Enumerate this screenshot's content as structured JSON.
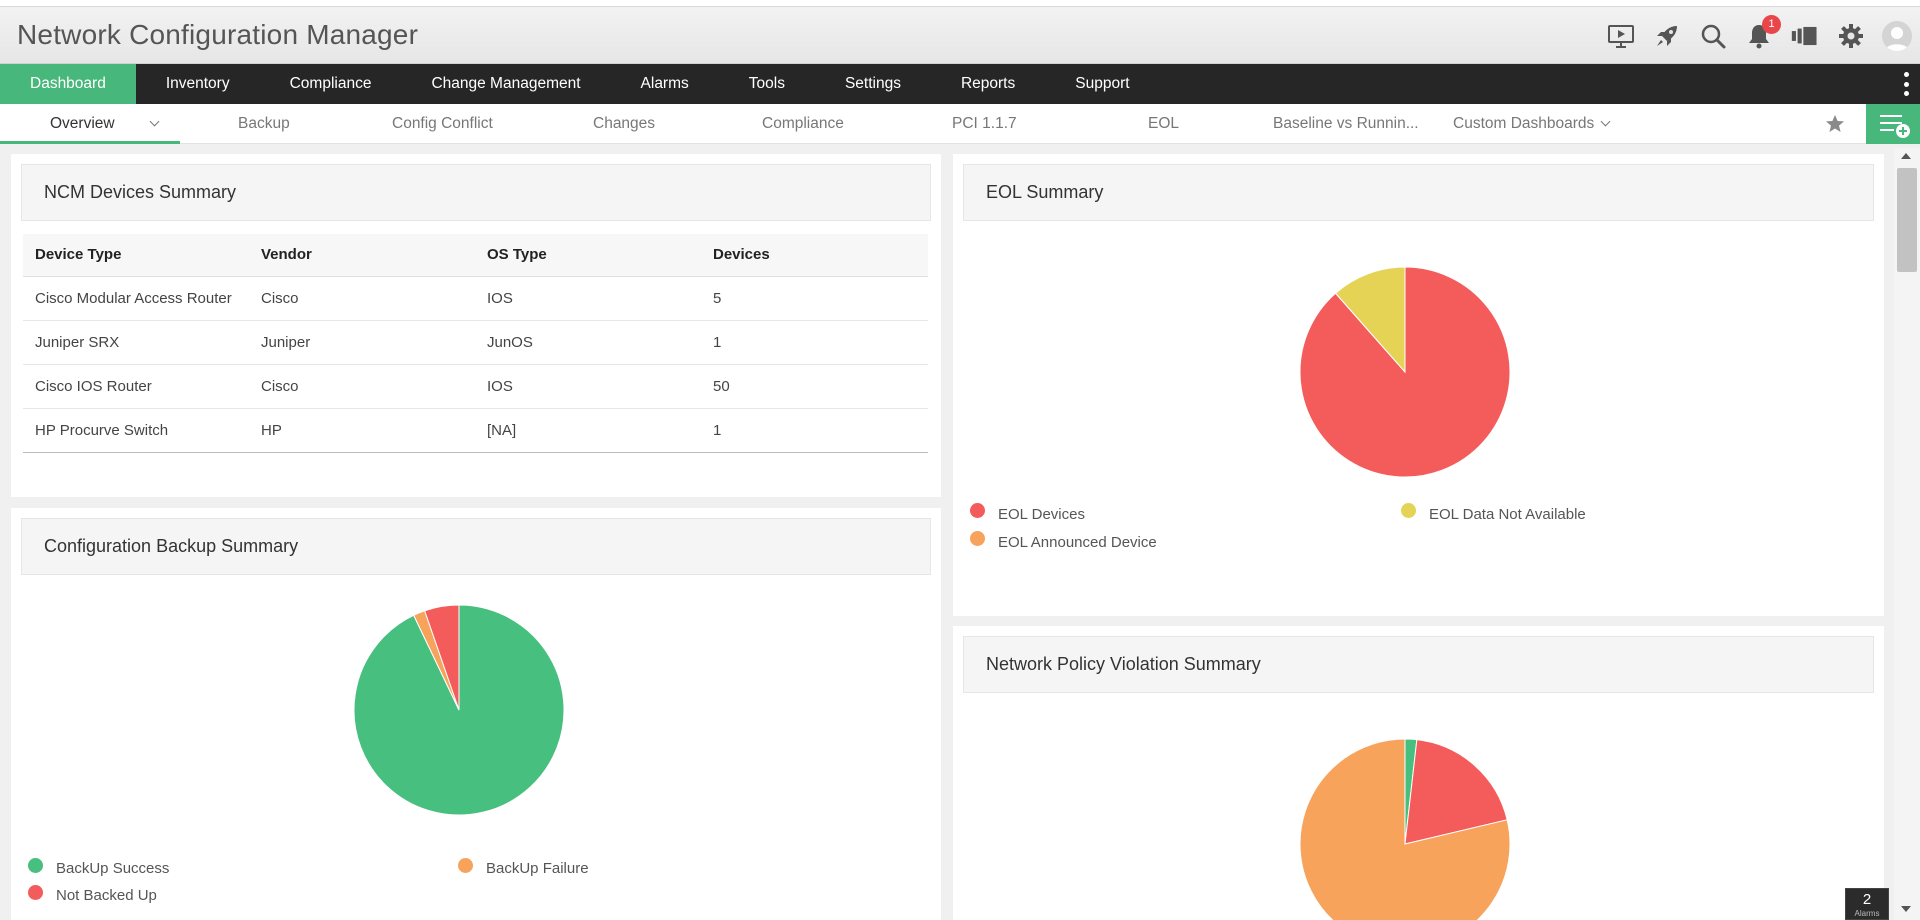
{
  "app": {
    "title": "Network Configuration Manager",
    "notification_count": "1",
    "header_icons": [
      "demo-play-icon",
      "rocket-icon",
      "search-icon",
      "bell-icon",
      "product-switch-icon",
      "gear-icon",
      "user-avatar-icon"
    ]
  },
  "main_nav": [
    {
      "label": "Dashboard",
      "active": true
    },
    {
      "label": "Inventory"
    },
    {
      "label": "Compliance"
    },
    {
      "label": "Change Management"
    },
    {
      "label": "Alarms"
    },
    {
      "label": "Tools"
    },
    {
      "label": "Settings"
    },
    {
      "label": "Reports"
    },
    {
      "label": "Support"
    }
  ],
  "sub_nav": [
    {
      "label": "Overview",
      "active": true
    },
    {
      "label": "Backup"
    },
    {
      "label": "Config Conflict"
    },
    {
      "label": "Changes"
    },
    {
      "label": "Compliance"
    },
    {
      "label": "PCI 1.1.7"
    },
    {
      "label": "EOL"
    },
    {
      "label": "Baseline vs Runnin..."
    },
    {
      "label": "Custom Dashboards"
    }
  ],
  "devices_summary": {
    "title": "NCM Devices Summary",
    "columns": [
      "Device Type",
      "Vendor",
      "OS Type",
      "Devices"
    ],
    "rows": [
      [
        "Cisco Modular Access Router",
        "Cisco",
        "IOS",
        "5"
      ],
      [
        "Juniper SRX",
        "Juniper",
        "JunOS",
        "1"
      ],
      [
        "Cisco IOS Router",
        "Cisco",
        "IOS",
        "50"
      ],
      [
        "HP Procurve Switch",
        "HP",
        "[NA]",
        "1"
      ]
    ]
  },
  "eol_summary": {
    "title": "EOL Summary",
    "legend": [
      {
        "label": "EOL Devices",
        "color": "#f45b5b"
      },
      {
        "label": "EOL Data Not Available",
        "color": "#e4d354"
      },
      {
        "label": "EOL Announced Device",
        "color": "#f7a35c"
      }
    ]
  },
  "backup_summary": {
    "title": "Configuration Backup Summary",
    "legend": [
      {
        "label": "BackUp Success",
        "color": "#47bf7f"
      },
      {
        "label": "BackUp Failure",
        "color": "#f7a35c"
      },
      {
        "label": "Not Backed Up",
        "color": "#f45b5b"
      }
    ]
  },
  "policy_summary": {
    "title": "Network Policy Violation Summary"
  },
  "chart_data": [
    {
      "type": "pie",
      "title": "EOL Summary",
      "series": [
        {
          "name": "",
          "values": [
            88.5,
            11.5
          ]
        }
      ],
      "categories": [
        "EOL Devices",
        "EOL Data Not Available"
      ],
      "colors": [
        "#f45b5b",
        "#e4d354"
      ]
    },
    {
      "type": "pie",
      "title": "Configuration Backup Summary",
      "series": [
        {
          "name": "",
          "values": [
            92.9,
            1.8,
            5.3
          ]
        }
      ],
      "categories": [
        "BackUp Success",
        "BackUp Failure",
        "Not Backed Up"
      ],
      "colors": [
        "#47bf7f",
        "#f7a35c",
        "#f45b5b"
      ]
    },
    {
      "type": "pie",
      "title": "Network Policy Violation Summary",
      "series": [
        {
          "name": "",
          "values": [
            1.8,
            19.5,
            78.7
          ]
        }
      ],
      "categories": [
        "",
        "",
        ""
      ],
      "colors": [
        "#47bf7f",
        "#f45b5b",
        "#f7a35c"
      ]
    }
  ],
  "alarms_widget": {
    "count": "2",
    "label": "Alarms"
  }
}
